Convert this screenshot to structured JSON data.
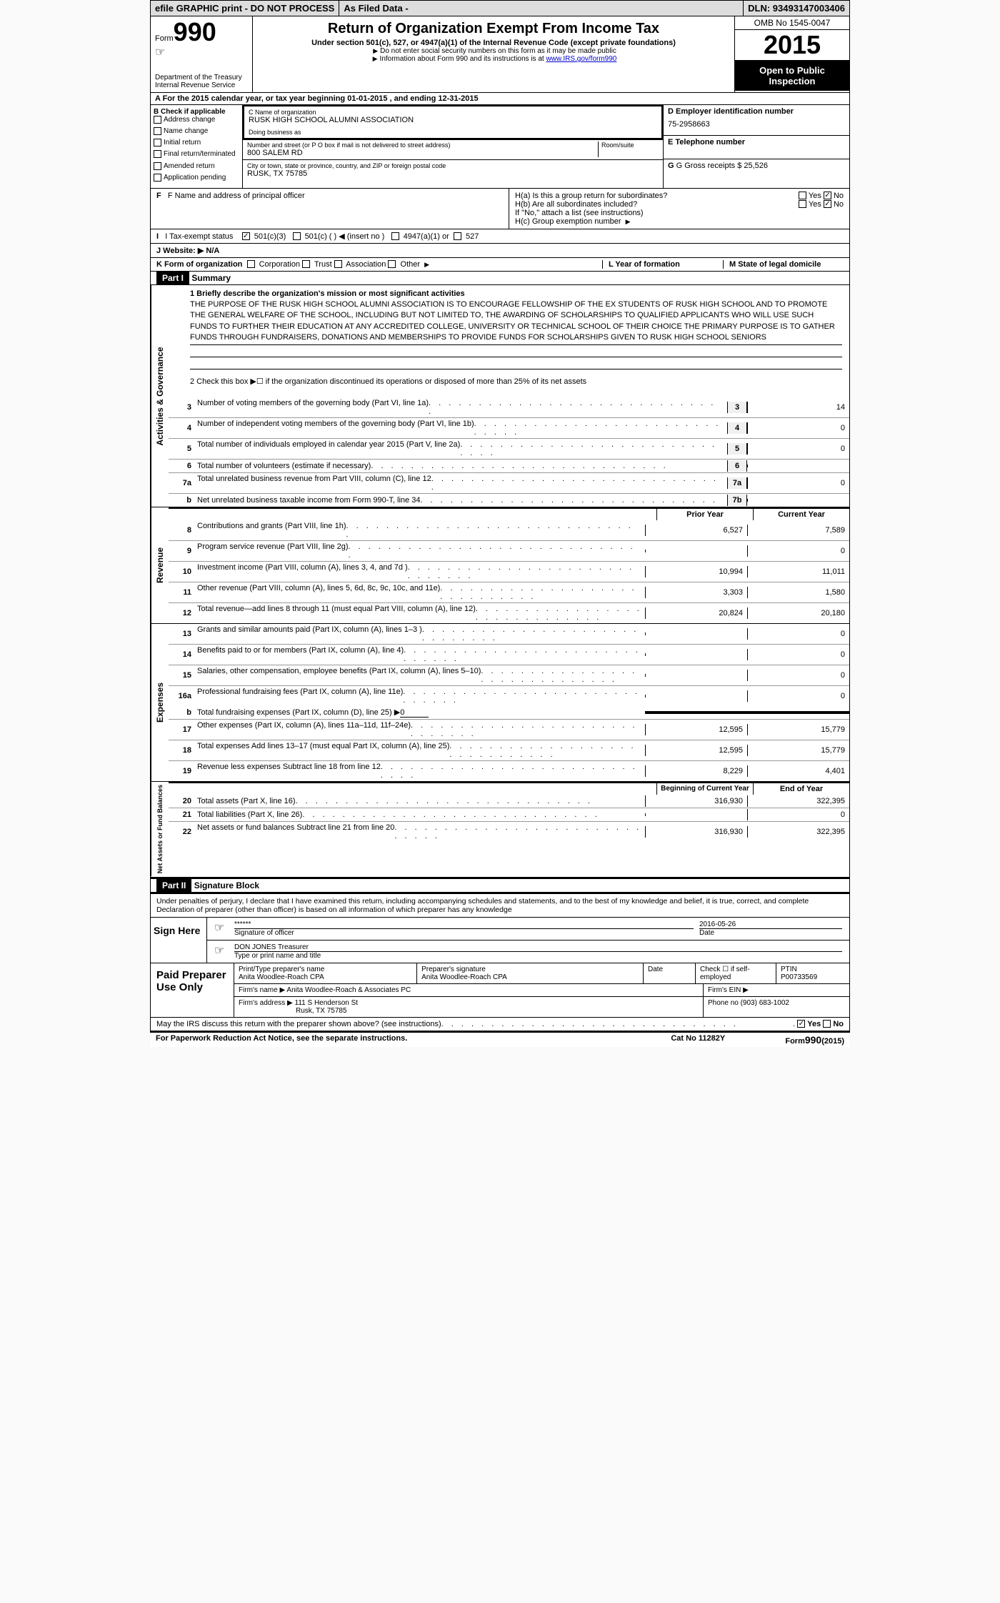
{
  "topbar": {
    "left": "efile GRAPHIC print - DO NOT PROCESS",
    "mid": "As Filed Data -",
    "right": "DLN: 93493147003406"
  },
  "header": {
    "form_prefix": "Form",
    "form_number": "990",
    "dept": "Department of the Treasury",
    "irs": "Internal Revenue Service",
    "title": "Return of Organization Exempt From Income Tax",
    "subtitle": "Under section 501(c), 527, or 4947(a)(1) of the Internal Revenue Code (except private foundations)",
    "note1": "Do not enter social security numbers on this form as it may be made public",
    "note2_prefix": "Information about Form 990 and its instructions is at ",
    "note2_link": "www.IRS.gov/form990",
    "omb": "OMB No 1545-0047",
    "year": "2015",
    "inspect": "Open to Public Inspection"
  },
  "row_a": "A  For the 2015 calendar year, or tax year beginning 01-01-2015    , and ending 12-31-2015",
  "col_b": {
    "label": "B Check if applicable",
    "items": [
      "Address change",
      "Name change",
      "Initial return",
      "Final return/terminated",
      "Amended return",
      "Application pending"
    ]
  },
  "col_c": {
    "name_label": "C Name of organization",
    "name": "RUSK HIGH SCHOOL ALUMNI ASSOCIATION",
    "dba_label": "Doing business as",
    "dba": "",
    "addr_label": "Number and street (or P O  box if mail is not delivered to street address)",
    "room_label": "Room/suite",
    "addr": "800 SALEM RD",
    "city_label": "City or town, state or province, country, and ZIP or foreign postal code",
    "city": "RUSK, TX  75785"
  },
  "col_de": {
    "d_label": "D Employer identification number",
    "ein": "75-2958663",
    "e_label": "E Telephone number",
    "phone": "",
    "g_label": "G Gross receipts $ 25,526"
  },
  "row_f": "F   Name and address of principal officer",
  "row_h": {
    "ha": "H(a)  Is this a group return for subordinates?",
    "hb": "H(b)  Are all subordinates included?",
    "hb_note": "If \"No,\" attach a list  (see instructions)",
    "hc": "H(c)  Group exemption number",
    "yes": "Yes",
    "no": "No"
  },
  "row_i": {
    "label": "I   Tax-exempt status",
    "opt1": "501(c)(3)",
    "opt2": "501(c) (  )",
    "opt2_note": "(insert no )",
    "opt3": "4947(a)(1) or",
    "opt4": "527"
  },
  "row_j": "J   Website: ▶  N/A",
  "row_k": {
    "k": "K Form of organization",
    "k_opts": [
      "Corporation",
      "Trust",
      "Association",
      "Other"
    ],
    "l": "L Year of formation",
    "m": "M State of legal domicile"
  },
  "part1": {
    "header": "Part I",
    "title": "Summary",
    "side_ag": "Activities & Governance",
    "side_rev": "Revenue",
    "side_exp": "Expenses",
    "side_na": "Net Assets or Fund Balances",
    "line1_label": "1 Briefly describe the organization's mission or most significant activities",
    "mission": "THE PURPOSE OF THE RUSK HIGH SCHOOL ALUMNI ASSOCIATION IS TO ENCOURAGE FELLOWSHIP OF THE EX STUDENTS OF RUSK HIGH SCHOOL AND TO PROMOTE THE GENERAL WELFARE OF THE SCHOOL, INCLUDING BUT NOT LIMITED TO, THE AWARDING OF SCHOLARSHIPS TO QUALIFIED APPLICANTS WHO WILL USE SUCH FUNDS TO FURTHER THEIR EDUCATION AT ANY ACCREDITED COLLEGE, UNIVERSITY OR TECHNICAL SCHOOL OF THEIR CHOICE  THE PRIMARY PURPOSE IS TO GATHER FUNDS THROUGH FUNDRAISERS, DONATIONS AND MEMBERSHIPS TO PROVIDE FUNDS FOR SCHOLARSHIPS GIVEN TO RUSK HIGH SCHOOL SENIORS",
    "line2": "2  Check this box ▶☐ if the organization discontinued its operations or disposed of more than 25% of its net assets",
    "lines_3_7": [
      {
        "n": "3",
        "d": "Number of voting members of the governing body (Part VI, line 1a)",
        "box": "3",
        "v": "14"
      },
      {
        "n": "4",
        "d": "Number of independent voting members of the governing body (Part VI, line 1b)",
        "box": "4",
        "v": "0"
      },
      {
        "n": "5",
        "d": "Total number of individuals employed in calendar year 2015 (Part V, line 2a)",
        "box": "5",
        "v": "0"
      },
      {
        "n": "6",
        "d": "Total number of volunteers (estimate if necessary)",
        "box": "6",
        "v": ""
      },
      {
        "n": "7a",
        "d": "Total unrelated business revenue from Part VIII, column (C), line 12",
        "box": "7a",
        "v": "0"
      },
      {
        "n": "b",
        "d": "Net unrelated business taxable income from Form 990-T, line 34",
        "box": "7b",
        "v": ""
      }
    ],
    "prior_year": "Prior Year",
    "current_year": "Current Year",
    "revenue_lines": [
      {
        "n": "8",
        "d": "Contributions and grants (Part VIII, line 1h)",
        "py": "6,527",
        "cy": "7,589"
      },
      {
        "n": "9",
        "d": "Program service revenue (Part VIII, line 2g)",
        "py": "",
        "cy": "0"
      },
      {
        "n": "10",
        "d": "Investment income (Part VIII, column (A), lines 3, 4, and 7d )",
        "py": "10,994",
        "cy": "11,011"
      },
      {
        "n": "11",
        "d": "Other revenue (Part VIII, column (A), lines 5, 6d, 8c, 9c, 10c, and 11e)",
        "py": "3,303",
        "cy": "1,580"
      },
      {
        "n": "12",
        "d": "Total revenue—add lines 8 through 11 (must equal Part VIII, column (A), line 12)",
        "py": "20,824",
        "cy": "20,180"
      }
    ],
    "expense_lines": [
      {
        "n": "13",
        "d": "Grants and similar amounts paid (Part IX, column (A), lines 1–3 )",
        "py": "",
        "cy": "0"
      },
      {
        "n": "14",
        "d": "Benefits paid to or for members (Part IX, column (A), line 4)",
        "py": "",
        "cy": "0"
      },
      {
        "n": "15",
        "d": "Salaries, other compensation, employee benefits (Part IX, column (A), lines 5–10)",
        "py": "",
        "cy": "0"
      },
      {
        "n": "16a",
        "d": "Professional fundraising fees (Part IX, column (A), line 11e)",
        "py": "",
        "cy": "0"
      }
    ],
    "line_b": {
      "n": "b",
      "d": "Total fundraising expenses (Part IX, column (D), line 25) ▶",
      "u": "0"
    },
    "expense_lines2": [
      {
        "n": "17",
        "d": "Other expenses (Part IX, column (A), lines 11a–11d, 11f–24e)",
        "py": "12,595",
        "cy": "15,779"
      },
      {
        "n": "18",
        "d": "Total expenses  Add lines 13–17 (must equal Part IX, column (A), line 25)",
        "py": "12,595",
        "cy": "15,779"
      },
      {
        "n": "19",
        "d": "Revenue less expenses  Subtract line 18 from line 12",
        "py": "8,229",
        "cy": "4,401"
      }
    ],
    "bcy": "Beginning of Current Year",
    "eoy": "End of Year",
    "na_lines": [
      {
        "n": "20",
        "d": "Total assets (Part X, line 16)",
        "py": "316,930",
        "cy": "322,395"
      },
      {
        "n": "21",
        "d": "Total liabilities (Part X, line 26)",
        "py": "",
        "cy": "0"
      },
      {
        "n": "22",
        "d": "Net assets or fund balances  Subtract line 21 from line 20",
        "py": "316,930",
        "cy": "322,395"
      }
    ]
  },
  "part2": {
    "header": "Part II",
    "title": "Signature Block",
    "perjury": "Under penalties of perjury, I declare that I have examined this return, including accompanying schedules and statements, and to the best of my knowledge and belief, it is true, correct, and complete  Declaration of preparer (other than officer) is based on all information of which preparer has any knowledge",
    "sign_here": "Sign Here",
    "sig_stars": "******",
    "sig_label": "Signature of officer",
    "date": "2016-05-26",
    "date_label": "Date",
    "officer": "DON JONES Treasurer",
    "officer_label": "Type or print name and title",
    "paid": "Paid Preparer Use Only",
    "prep_name_label": "Print/Type preparer's name",
    "prep_name": "Anita Woodlee-Roach CPA",
    "prep_sig_label": "Preparer's signature",
    "prep_sig": "Anita Woodlee-Roach CPA",
    "prep_date_label": "Date",
    "check_self": "Check ☐ if self-employed",
    "ptin_label": "PTIN",
    "ptin": "P00733569",
    "firm_name_label": "Firm's name    ▶",
    "firm_name": "Anita Woodlee-Roach & Associates PC",
    "firm_ein_label": "Firm's EIN ▶",
    "firm_addr_label": "Firm's address ▶",
    "firm_addr": "111 S Henderson St",
    "firm_city": "Rusk, TX  75785",
    "firm_phone_label": "Phone no  (903) 683-1002",
    "discuss": "May the IRS discuss this return with the preparer shown above? (see instructions)",
    "yes": "Yes",
    "no": "No"
  },
  "footer": {
    "left": "For Paperwork Reduction Act Notice, see the separate instructions.",
    "mid": "Cat No 11282Y",
    "right_prefix": "Form",
    "right_form": "990",
    "right_year": "(2015)"
  }
}
